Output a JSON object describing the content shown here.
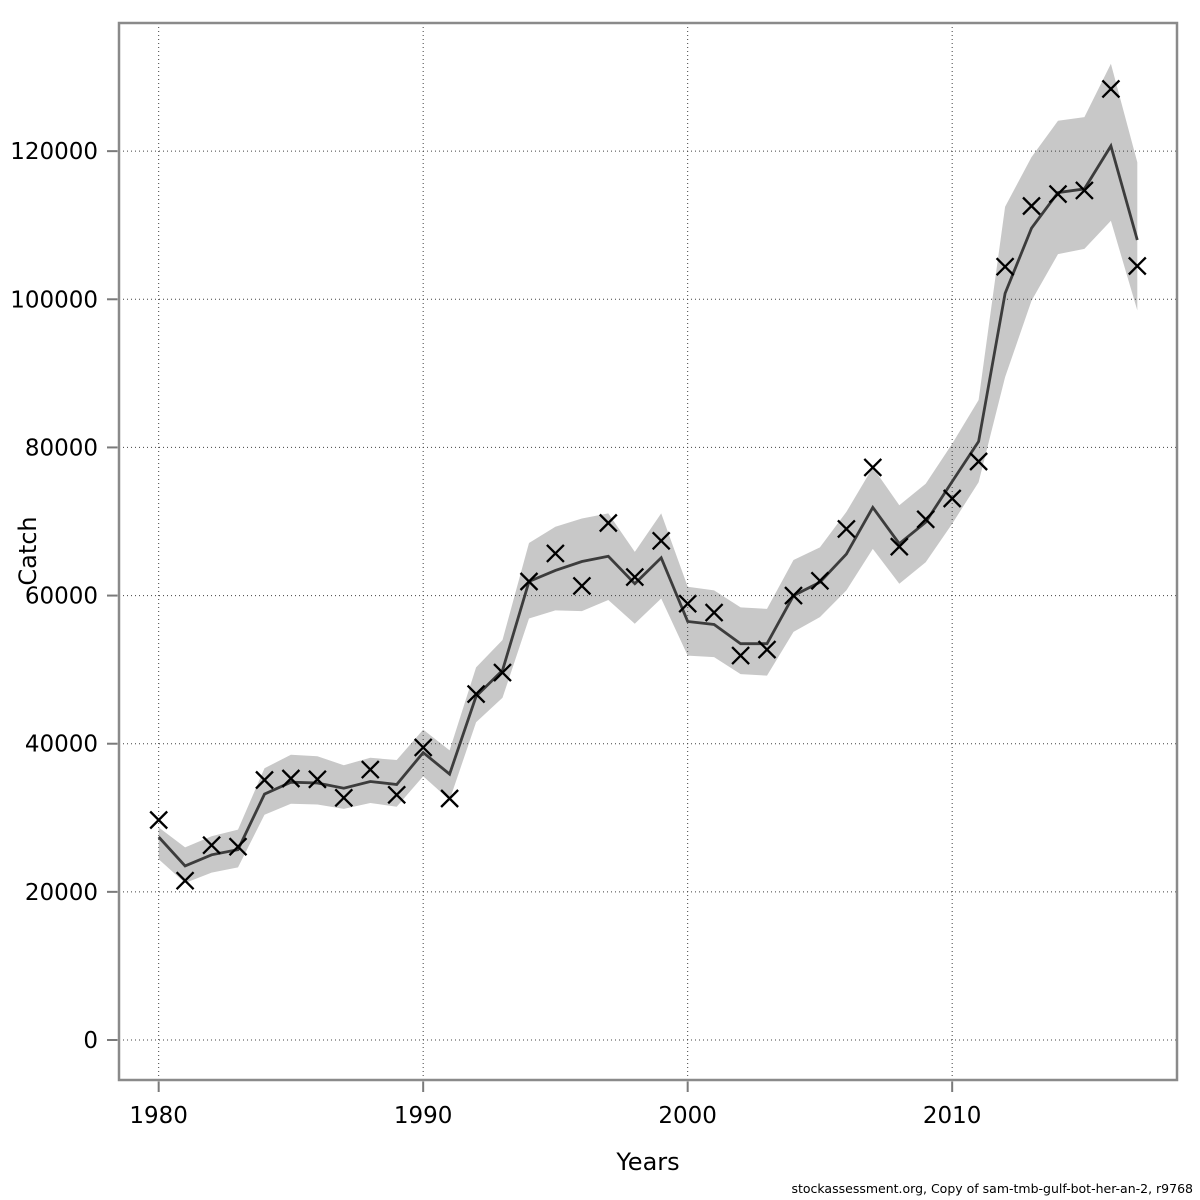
{
  "figure": {
    "ylabel": "Catch",
    "xlabel": "Years",
    "footer": "stockassessment.org, Copy of sam-tmb-gulf-bot-her-an-2, r9768"
  },
  "chart_data": {
    "type": "line",
    "title": "",
    "xlabel": "Years",
    "ylabel": "Catch",
    "grid": "dotted",
    "legend": "none",
    "xlim": [
      1978.5,
      2018.5
    ],
    "ylim": [
      -5400,
      137300
    ],
    "xticks": [
      1980,
      1990,
      2000,
      2010
    ],
    "yticks": [
      0,
      20000,
      40000,
      60000,
      80000,
      100000,
      120000
    ],
    "x": [
      1980,
      1981,
      1982,
      1983,
      1984,
      1985,
      1986,
      1987,
      1988,
      1989,
      1990,
      1991,
      1992,
      1993,
      1994,
      1995,
      1996,
      1997,
      1998,
      1999,
      2000,
      2001,
      2002,
      2003,
      2004,
      2005,
      2006,
      2007,
      2008,
      2009,
      2010,
      2011,
      2012,
      2013,
      2014,
      2015,
      2016,
      2017
    ],
    "series": [
      {
        "name": "observed-catch",
        "style": "x-markers",
        "marker": "x",
        "color": "#000000",
        "values": [
          29700,
          21500,
          26300,
          26100,
          35100,
          35300,
          35200,
          32700,
          36500,
          33100,
          39500,
          32600,
          46700,
          49600,
          61900,
          65700,
          61300,
          69800,
          62500,
          67400,
          58900,
          57700,
          51900,
          52700,
          60000,
          62000,
          69000,
          77300,
          66600,
          70300,
          73100,
          78100,
          104400,
          112600,
          114200,
          114700,
          128400,
          104500
        ]
      },
      {
        "name": "fitted-catch",
        "style": "solid-line",
        "color": "#3c3c3c",
        "values": [
          27400,
          23500,
          25000,
          25700,
          33200,
          34800,
          34700,
          34000,
          34900,
          34500,
          38800,
          35900,
          46400,
          49900,
          61900,
          63400,
          64600,
          65300,
          61600,
          65100,
          56500,
          56100,
          53500,
          53500,
          60000,
          61800,
          65600,
          71900,
          67000,
          69900,
          75400,
          80800,
          100800,
          109600,
          114400,
          114900,
          120700,
          108000
        ]
      },
      {
        "name": "ci-lower",
        "style": "band-edge",
        "color": "#c8c8c8",
        "values": [
          24400,
          21200,
          22600,
          23300,
          30400,
          31900,
          31800,
          31200,
          32000,
          31500,
          35600,
          32400,
          42900,
          46200,
          56900,
          58000,
          57900,
          59400,
          56200,
          59600,
          51900,
          51700,
          49400,
          49200,
          55100,
          57100,
          60700,
          66300,
          61600,
          64500,
          69700,
          75300,
          89500,
          99800,
          106100,
          106800,
          110600,
          98500
        ]
      },
      {
        "name": "ci-upper",
        "style": "band-edge",
        "color": "#c8c8c8",
        "values": [
          28700,
          26000,
          27500,
          28400,
          36700,
          38500,
          38300,
          37100,
          38100,
          37800,
          41900,
          39100,
          50300,
          54000,
          67100,
          69300,
          70400,
          71100,
          65900,
          71100,
          61200,
          60700,
          58400,
          58200,
          64800,
          66500,
          71300,
          77300,
          72200,
          75100,
          80500,
          86400,
          112500,
          119200,
          124100,
          124600,
          131800,
          118500
        ]
      }
    ],
    "band": {
      "fill": "#c8c8c8"
    },
    "colors": {
      "grid": "#404040",
      "border": "#8a8a8a",
      "ticks": "#7a7a7a",
      "fitted_line": "#3c3c3c",
      "marker": "#000000"
    }
  }
}
